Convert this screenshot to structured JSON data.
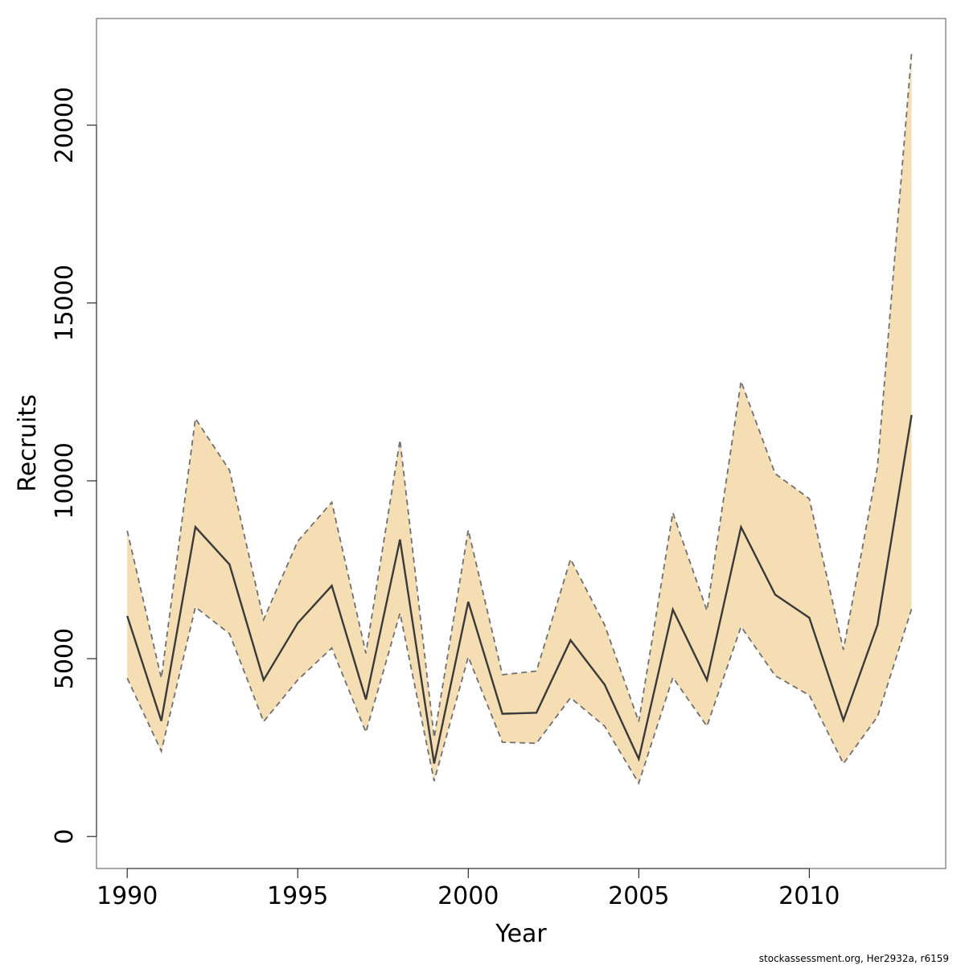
{
  "chart_data": {
    "type": "line",
    "xlabel": "Year",
    "ylabel": "Recruits",
    "xlim": [
      1989.1,
      2014
    ],
    "ylim": [
      -900,
      23000
    ],
    "x_ticks": [
      1990,
      1995,
      2000,
      2005,
      2010
    ],
    "y_ticks": [
      0,
      5000,
      10000,
      15000,
      20000
    ],
    "x_tick_labels": [
      "1990",
      "1995",
      "2000",
      "2005",
      "2010"
    ],
    "y_tick_labels": [
      "0",
      "5000",
      "10000",
      "15000",
      "20000"
    ],
    "series": [
      {
        "role": "estimate",
        "style": "solid",
        "x": [
          1990,
          1991,
          1992,
          1993,
          1994,
          1995,
          1996,
          1997,
          1998,
          1999,
          2000,
          2001,
          2002,
          2003,
          2004,
          2005,
          2006,
          2007,
          2008,
          2009,
          2010,
          2011,
          2012,
          2013
        ],
        "values": [
          6200,
          3250,
          8700,
          7650,
          4400,
          6000,
          7050,
          3850,
          8350,
          2050,
          6600,
          3450,
          3480,
          5520,
          4270,
          2180,
          6380,
          4400,
          8700,
          6800,
          6150,
          3270,
          5950,
          11850
        ]
      },
      {
        "role": "upper bound",
        "style": "dashed",
        "x": [
          1990,
          1991,
          1992,
          1993,
          1994,
          1995,
          1996,
          1997,
          1998,
          1999,
          2000,
          2001,
          2002,
          2003,
          2004,
          2005,
          2006,
          2007,
          2008,
          2009,
          2010,
          2011,
          2012,
          2013
        ],
        "values": [
          8600,
          4450,
          11750,
          10300,
          6100,
          8300,
          9400,
          5150,
          11150,
          2780,
          8620,
          4550,
          4650,
          7800,
          5950,
          3230,
          9100,
          6350,
          12800,
          10200,
          9500,
          5250,
          10400,
          22050
        ]
      },
      {
        "role": "lower bound",
        "style": "dashed",
        "x": [
          1990,
          1991,
          1992,
          1993,
          1994,
          1995,
          1996,
          1997,
          1998,
          1999,
          2000,
          2001,
          2002,
          2003,
          2004,
          2005,
          2006,
          2007,
          2008,
          2009,
          2010,
          2011,
          2012,
          2013
        ],
        "values": [
          4450,
          2400,
          6450,
          5700,
          3230,
          4400,
          5300,
          2930,
          6280,
          1560,
          5050,
          2650,
          2620,
          3900,
          3100,
          1500,
          4470,
          3100,
          5900,
          4520,
          3970,
          2050,
          3370,
          6400
        ]
      }
    ],
    "grid": false,
    "legend": "none"
  },
  "colors": {
    "band_fill": "#f5deb3",
    "estimate_line": "#3a3a3a",
    "bound_line": "#707070",
    "axis": "#000000"
  },
  "credit": "stockassessment.org, Her2932a, r6159"
}
